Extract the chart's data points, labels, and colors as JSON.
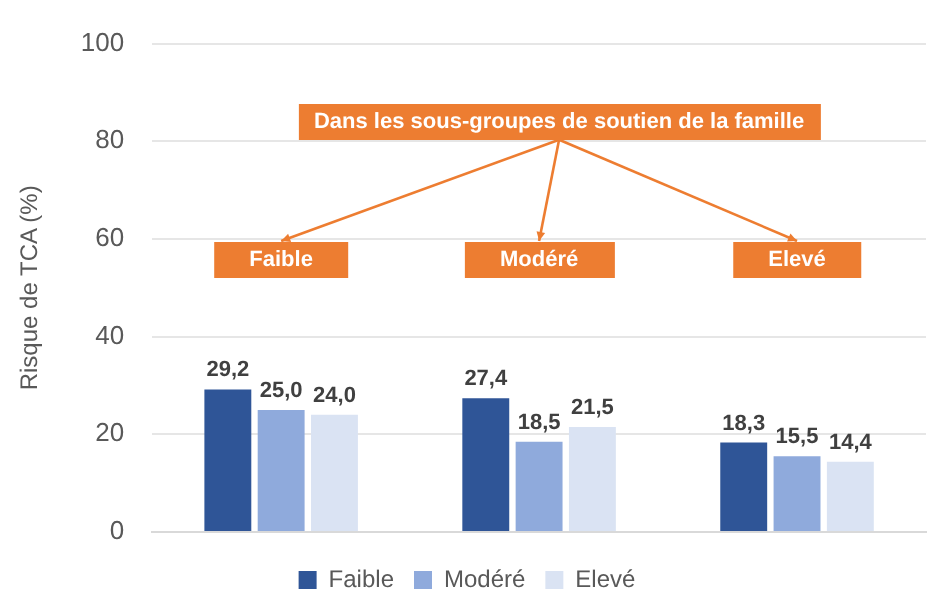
{
  "chart_data": {
    "type": "bar",
    "ylabel": "Risque de TCA (%)",
    "categories": [
      "Faible",
      "Modéré",
      "Elevé"
    ],
    "series": [
      {
        "name": "Faible",
        "color": "#2f5597",
        "values": [
          29.2,
          27.4,
          18.3
        ],
        "value_labels": [
          "29,2",
          "27,4",
          "18,3"
        ]
      },
      {
        "name": "Modéré",
        "color": "#8faadc",
        "values": [
          25.0,
          18.5,
          15.5
        ],
        "value_labels": [
          "25,0",
          "18,5",
          "15,5"
        ]
      },
      {
        "name": "Elevé",
        "color": "#dae3f3",
        "values": [
          24.0,
          21.5,
          14.4
        ],
        "value_labels": [
          "24,0",
          "21,5",
          "14,4"
        ]
      }
    ],
    "annotations": [
      "Dans les sous-groupes de soutien de la famille"
    ],
    "ylim": [
      0,
      100
    ],
    "yticks": [
      0,
      20,
      40,
      60,
      80,
      100
    ],
    "grid": "y",
    "legend": "bottom"
  }
}
